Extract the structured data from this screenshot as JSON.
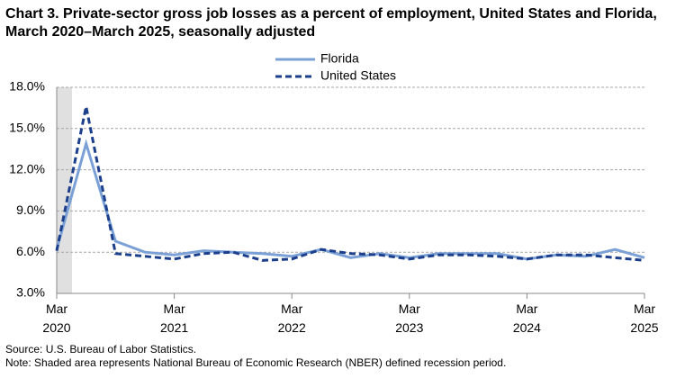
{
  "chart_data": {
    "type": "line",
    "title": "Chart 3. Private-sector gross job losses as a percent of employment, United States and Florida, March 2020–March 2025, seasonally adjusted",
    "source": "Source: U.S. Bureau of Labor Statistics.",
    "note": "Note: Shaded area represents National Bureau of Economic Research (NBER) defined  recession period.",
    "categories": [
      "Mar 2020",
      null,
      null,
      null,
      "Mar 2021",
      null,
      null,
      null,
      "Mar 2022",
      null,
      null,
      null,
      "Mar 2023",
      null,
      null,
      null,
      "Mar 2024",
      null,
      null,
      null,
      "Mar 2025"
    ],
    "series": [
      {
        "name": "Florida",
        "color": "#7ba0d6",
        "dashed": false,
        "values": [
          6.2,
          13.9,
          6.8,
          6.0,
          5.8,
          6.1,
          6.0,
          5.9,
          5.7,
          6.2,
          5.6,
          5.9,
          5.6,
          5.9,
          5.9,
          5.9,
          5.5,
          5.8,
          5.7,
          6.2,
          5.6
        ]
      },
      {
        "name": "United States",
        "color": "#1c3f8c",
        "dashed": true,
        "values": [
          6.1,
          16.6,
          5.9,
          5.7,
          5.5,
          5.9,
          6.0,
          5.4,
          5.5,
          6.2,
          5.9,
          5.8,
          5.5,
          5.8,
          5.8,
          5.7,
          5.5,
          5.8,
          5.8,
          5.6,
          5.4
        ]
      }
    ],
    "ylim": [
      3,
      18
    ],
    "yticks": [
      {
        "value": 3,
        "label": "3.0%"
      },
      {
        "value": 6,
        "label": "6.0%"
      },
      {
        "value": 9,
        "label": "9.0%"
      },
      {
        "value": 12,
        "label": "12.0%"
      },
      {
        "value": 15,
        "label": "15.0%"
      },
      {
        "value": 18,
        "label": "18.0%"
      }
    ],
    "grid": true
  }
}
